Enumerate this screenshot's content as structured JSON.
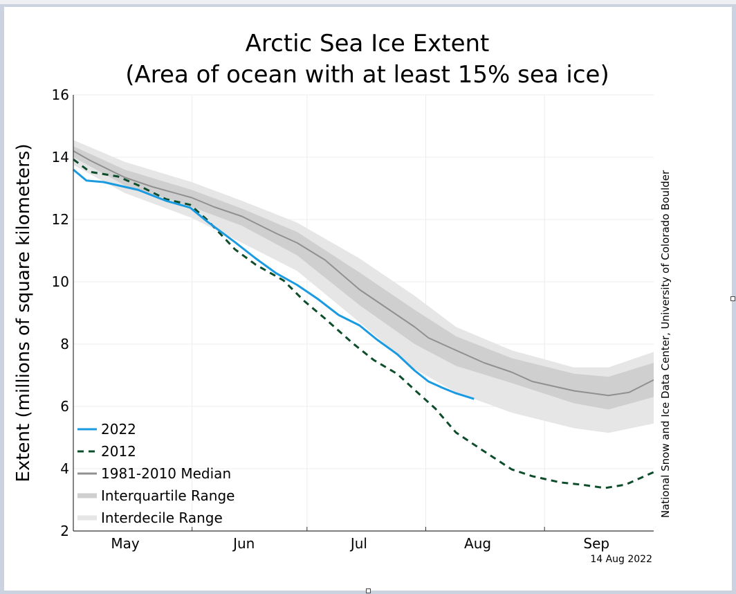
{
  "window": {
    "accent_colors": {
      "frame": "#ccd3e0"
    }
  },
  "chart_data": {
    "type": "line",
    "title": "Arctic Sea Ice Extent",
    "subtitle": "(Area of ocean with at least 15% sea ice)",
    "xlabel": "",
    "ylabel": "Extent (millions of square kilometers)",
    "ylim": [
      2,
      16
    ],
    "yticks": [
      2,
      4,
      6,
      8,
      10,
      12,
      14,
      16
    ],
    "x_unit": "days since May 1",
    "xlim": [
      0,
      151.5
    ],
    "xticks": [
      {
        "label": "May",
        "day": 15,
        "boundary": false
      },
      {
        "label": "Jun",
        "day": 46,
        "boundary": false
      },
      {
        "label": "Jul",
        "day": 76,
        "boundary": false
      },
      {
        "label": "Aug",
        "day": 107,
        "boundary": false
      },
      {
        "label": "Sep",
        "day": 138,
        "boundary": false
      }
    ],
    "month_boundaries": [
      31,
      61,
      92,
      123
    ],
    "grid": true,
    "legend_position": "bottom-left",
    "date_stamp": "14 Aug 2022",
    "credit": "National Snow and Ice Data Center, University of Colorado Boulder",
    "series": [
      {
        "name": "2022",
        "style": "solid",
        "color": "#1a9ae0",
        "x": [
          0,
          3.4,
          7.9,
          16.9,
          24.2,
          30.5,
          35,
          42.2,
          47.6,
          53,
          58.4,
          63.8,
          69.3,
          74.7,
          79.2,
          84.6,
          89.1,
          92.7,
          96.3,
          99.9,
          104.6
        ],
        "values": [
          13.6,
          13.25,
          13.2,
          12.95,
          12.6,
          12.38,
          11.93,
          11.27,
          10.75,
          10.27,
          9.9,
          9.45,
          8.93,
          8.6,
          8.15,
          7.67,
          7.15,
          6.8,
          6.6,
          6.42,
          6.24
        ]
      },
      {
        "name": "2012",
        "style": "dashed",
        "color": "#0d4d2b",
        "x": [
          0,
          4.3,
          11.6,
          16.9,
          24.2,
          30.5,
          35,
          42.2,
          47.6,
          54.9,
          60.3,
          65.7,
          73,
          78.4,
          84.6,
          89.1,
          94.5,
          99.9,
          107.2,
          114.4,
          119.8,
          127.1,
          132.5,
          138.8,
          144.2,
          151.5
        ],
        "values": [
          13.93,
          13.53,
          13.38,
          13.1,
          12.65,
          12.47,
          11.98,
          11.04,
          10.55,
          10.04,
          9.38,
          8.82,
          8.02,
          7.49,
          7.04,
          6.53,
          5.93,
          5.16,
          4.56,
          3.98,
          3.76,
          3.56,
          3.49,
          3.38,
          3.49,
          3.89
        ]
      },
      {
        "name": "1981-2010 Median",
        "style": "solid",
        "color": "#909090",
        "x": [
          0,
          4.3,
          13.4,
          20.6,
          30.9,
          36.8,
          44,
          53,
          58.4,
          65.7,
          74.7,
          81.9,
          89.1,
          92.7,
          99.9,
          107.2,
          114.4,
          119.8,
          130.7,
          139.7,
          145.1,
          151.5
        ],
        "values": [
          14.2,
          13.9,
          13.35,
          13.05,
          12.7,
          12.4,
          12.1,
          11.55,
          11.25,
          10.7,
          9.75,
          9.15,
          8.55,
          8.2,
          7.8,
          7.4,
          7.1,
          6.8,
          6.5,
          6.35,
          6.45,
          6.85
        ]
      },
      {
        "name": "Interquartile Range",
        "style": "band",
        "color": "#cfcfcf",
        "x": [
          0,
          13.4,
          30.9,
          44,
          58.4,
          74.7,
          89.1,
          99.9,
          114.4,
          130.7,
          139.7,
          151.5
        ],
        "upper": [
          14.35,
          13.6,
          12.95,
          12.35,
          11.6,
          10.3,
          9.1,
          8.25,
          7.55,
          7.05,
          6.95,
          7.4
        ],
        "lower": [
          14.0,
          13.1,
          12.4,
          11.8,
          10.85,
          9.25,
          8.0,
          7.3,
          6.75,
          6.1,
          5.9,
          6.3
        ]
      },
      {
        "name": "Interdecile Range",
        "style": "band",
        "color": "#e6e6e6",
        "x": [
          0,
          13.4,
          30.9,
          44,
          58.4,
          74.7,
          89.1,
          99.9,
          114.4,
          130.7,
          139.7,
          151.5
        ],
        "upper": [
          14.55,
          13.85,
          13.2,
          12.6,
          11.9,
          10.75,
          9.55,
          8.55,
          7.8,
          7.25,
          7.25,
          7.75
        ],
        "lower": [
          13.75,
          12.85,
          12.05,
          11.25,
          10.35,
          8.7,
          7.2,
          6.45,
          5.8,
          5.3,
          5.15,
          5.45
        ]
      }
    ]
  }
}
